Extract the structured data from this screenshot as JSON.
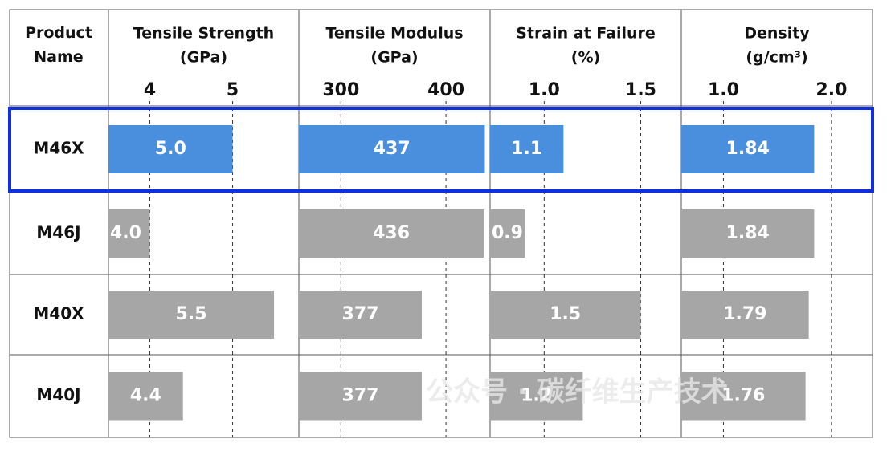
{
  "row_header": "Product Name",
  "watermark": "公众号 · 碳纤维生产技术",
  "highlight_color": "#1030e0",
  "chart_data": [
    {
      "type": "bar",
      "title": "Tensile Strength",
      "unit": "(GPa)",
      "categories": [
        "M46X",
        "M46J",
        "M40X",
        "M40J"
      ],
      "values": [
        5.0,
        4.0,
        5.5,
        4.4
      ],
      "value_labels": [
        "5.0",
        "4.0",
        "5.5",
        "4.4"
      ],
      "colors": [
        "#4a8ede",
        "#a6a6a6",
        "#a6a6a6",
        "#a6a6a6"
      ],
      "xlim": [
        3.5,
        5.8
      ],
      "xticks": [
        4,
        5
      ],
      "grid": true
    },
    {
      "type": "bar",
      "title": "Tensile Modulus",
      "unit": "(GPa)",
      "values": [
        437,
        436,
        377,
        377
      ],
      "colors": [
        "#4a8ede",
        "#a6a6a6",
        "#a6a6a6",
        "#a6a6a6"
      ],
      "xlim": [
        260,
        442
      ],
      "xticks": [
        300,
        400
      ],
      "grid": true
    },
    {
      "type": "bar",
      "title": "Strain at Failure",
      "unit": "(%)",
      "values": [
        1.1,
        0.9,
        1.5,
        1.2
      ],
      "colors": [
        "#4a8ede",
        "#a6a6a6",
        "#a6a6a6",
        "#a6a6a6"
      ],
      "xlim": [
        0.72,
        1.71
      ],
      "xticks": [
        {
          "value": 1.0,
          "label": "1.0"
        },
        {
          "value": 1.5,
          "label": "1.5"
        }
      ],
      "grid": true
    },
    {
      "type": "bar",
      "title": "Density",
      "unit": "(g/cm³)",
      "values": [
        1.84,
        1.84,
        1.79,
        1.76
      ],
      "colors": [
        "#4a8ede",
        "#a6a6a6",
        "#a6a6a6",
        "#a6a6a6"
      ],
      "xlim": [
        0.61,
        2.38
      ],
      "xticks": [
        {
          "value": 1.0,
          "label": "1.0"
        },
        {
          "value": 2.0,
          "label": "2.0"
        }
      ],
      "grid": true
    }
  ]
}
